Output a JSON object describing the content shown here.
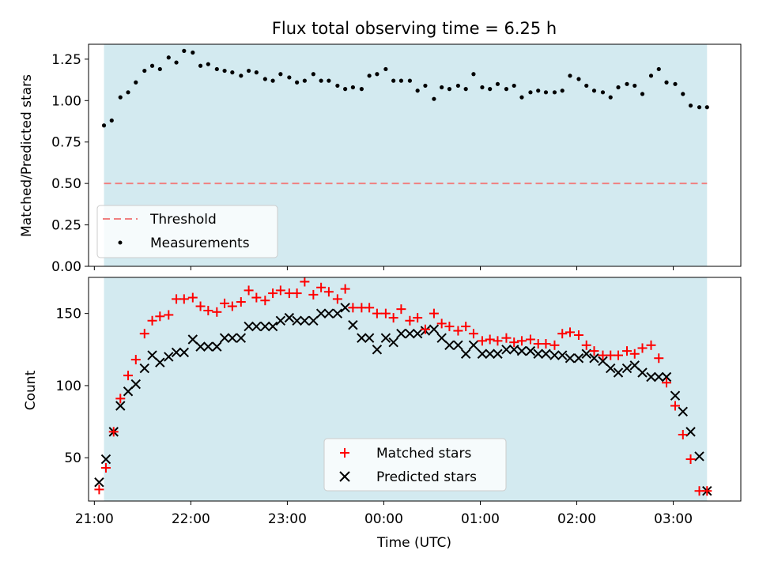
{
  "figure": {
    "title": "Flux total observing time = 6.25 h",
    "xlabel": "Time (UTC)",
    "xtick_labels": [
      "21:00",
      "22:00",
      "23:00",
      "00:00",
      "01:00",
      "02:00",
      "03:00"
    ],
    "colors": {
      "observing_band": "#d3eaf0",
      "threshold": "#f08080",
      "measurements": "#000000",
      "matched": "#ff0000",
      "predicted": "#000000"
    }
  },
  "chart_data": [
    {
      "type": "scatter",
      "ylabel": "Matched/Predicted stars",
      "ylim": [
        0,
        1.34
      ],
      "ytick_labels": [
        "0.00",
        "0.25",
        "0.50",
        "0.75",
        "1.00",
        "1.25"
      ],
      "xlim_hours": [
        20.94,
        27.7
      ],
      "observing_span_hours": [
        21.1,
        27.35
      ],
      "threshold": 0.5,
      "legend_position": "lower-left",
      "series": [
        {
          "name": "Threshold",
          "kind": "line",
          "values": [
            0.5
          ]
        },
        {
          "name": "Measurements",
          "kind": "points",
          "x": [
            21.1,
            21.18,
            21.27,
            21.35,
            21.43,
            21.52,
            21.6,
            21.68,
            21.77,
            21.85,
            21.93,
            22.02,
            22.1,
            22.18,
            22.27,
            22.35,
            22.43,
            22.52,
            22.6,
            22.68,
            22.77,
            22.85,
            22.93,
            23.02,
            23.1,
            23.18,
            23.27,
            23.35,
            23.43,
            23.52,
            23.6,
            23.68,
            23.77,
            23.85,
            23.93,
            24.02,
            24.1,
            24.18,
            24.27,
            24.35,
            24.43,
            24.52,
            24.6,
            24.68,
            24.77,
            24.85,
            24.93,
            25.02,
            25.1,
            25.18,
            25.27,
            25.35,
            25.43,
            25.52,
            25.6,
            25.68,
            25.77,
            25.85,
            25.93,
            26.02,
            26.1,
            26.18,
            26.27,
            26.35,
            26.43,
            26.52,
            26.6,
            26.68,
            26.77,
            26.85,
            26.93,
            27.02,
            27.1,
            27.18,
            27.27,
            27.35
          ],
          "y": [
            0.85,
            0.88,
            1.02,
            1.05,
            1.11,
            1.18,
            1.21,
            1.19,
            1.26,
            1.23,
            1.3,
            1.29,
            1.21,
            1.22,
            1.19,
            1.18,
            1.17,
            1.15,
            1.18,
            1.17,
            1.13,
            1.12,
            1.16,
            1.14,
            1.11,
            1.12,
            1.16,
            1.12,
            1.12,
            1.09,
            1.07,
            1.08,
            1.07,
            1.15,
            1.16,
            1.19,
            1.12,
            1.12,
            1.12,
            1.06,
            1.09,
            1.01,
            1.08,
            1.07,
            1.09,
            1.07,
            1.16,
            1.08,
            1.07,
            1.1,
            1.07,
            1.09,
            1.02,
            1.05,
            1.06,
            1.05,
            1.05,
            1.06,
            1.15,
            1.13,
            1.09,
            1.06,
            1.05,
            1.02,
            1.08,
            1.1,
            1.09,
            1.04,
            1.15,
            1.19,
            1.11,
            1.1,
            1.04,
            0.97,
            0.96,
            0.96
          ]
        }
      ]
    },
    {
      "type": "scatter",
      "ylabel": "Count",
      "ylim": [
        20,
        175
      ],
      "ytick_labels": [
        "50",
        "100",
        "150"
      ],
      "xlim_hours": [
        20.94,
        27.7
      ],
      "observing_span_hours": [
        21.1,
        27.35
      ],
      "legend_position": "lower-center",
      "x": [
        21.05,
        21.12,
        21.2,
        21.27,
        21.35,
        21.43,
        21.52,
        21.6,
        21.68,
        21.77,
        21.85,
        21.93,
        22.02,
        22.1,
        22.18,
        22.27,
        22.35,
        22.43,
        22.52,
        22.6,
        22.68,
        22.77,
        22.85,
        22.93,
        23.02,
        23.1,
        23.18,
        23.27,
        23.35,
        23.43,
        23.52,
        23.6,
        23.68,
        23.77,
        23.85,
        23.93,
        24.02,
        24.1,
        24.18,
        24.27,
        24.35,
        24.43,
        24.52,
        24.6,
        24.68,
        24.77,
        24.85,
        24.93,
        25.02,
        25.1,
        25.18,
        25.27,
        25.35,
        25.43,
        25.52,
        25.6,
        25.68,
        25.77,
        25.85,
        25.93,
        26.02,
        26.1,
        26.18,
        26.27,
        26.35,
        26.43,
        26.52,
        26.6,
        26.68,
        26.77,
        26.85,
        26.93,
        27.02,
        27.1,
        27.18,
        27.27,
        27.35
      ],
      "series": [
        {
          "name": "Matched stars",
          "marker": "plus",
          "values": [
            28,
            43,
            68,
            91,
            107,
            118,
            136,
            145,
            148,
            149,
            160,
            160,
            161,
            155,
            152,
            151,
            157,
            155,
            158,
            166,
            161,
            159,
            164,
            166,
            164,
            164,
            172,
            163,
            168,
            165,
            160,
            167,
            154,
            154,
            154,
            150,
            150,
            147,
            153,
            145,
            147,
            139,
            150,
            143,
            141,
            138,
            141,
            136,
            131,
            132,
            131,
            133,
            130,
            131,
            132,
            129,
            129,
            128,
            136,
            137,
            135,
            128,
            124,
            121,
            121,
            121,
            124,
            122,
            126,
            128,
            119,
            102,
            86,
            66,
            49,
            27,
            27
          ]
        },
        {
          "name": "Predicted stars",
          "marker": "x",
          "values": [
            33,
            49,
            68,
            86,
            96,
            101,
            112,
            121,
            116,
            120,
            123,
            123,
            132,
            127,
            127,
            127,
            133,
            133,
            133,
            141,
            141,
            141,
            141,
            145,
            147,
            145,
            145,
            145,
            150,
            150,
            150,
            154,
            142,
            133,
            133,
            125,
            133,
            130,
            136,
            136,
            136,
            138,
            139,
            133,
            128,
            128,
            122,
            128,
            122,
            122,
            122,
            125,
            125,
            124,
            124,
            122,
            122,
            121,
            121,
            119,
            119,
            122,
            119,
            117,
            112,
            109,
            112,
            114,
            109,
            106,
            106,
            106,
            93,
            82,
            68,
            51,
            27
          ]
        }
      ]
    }
  ]
}
